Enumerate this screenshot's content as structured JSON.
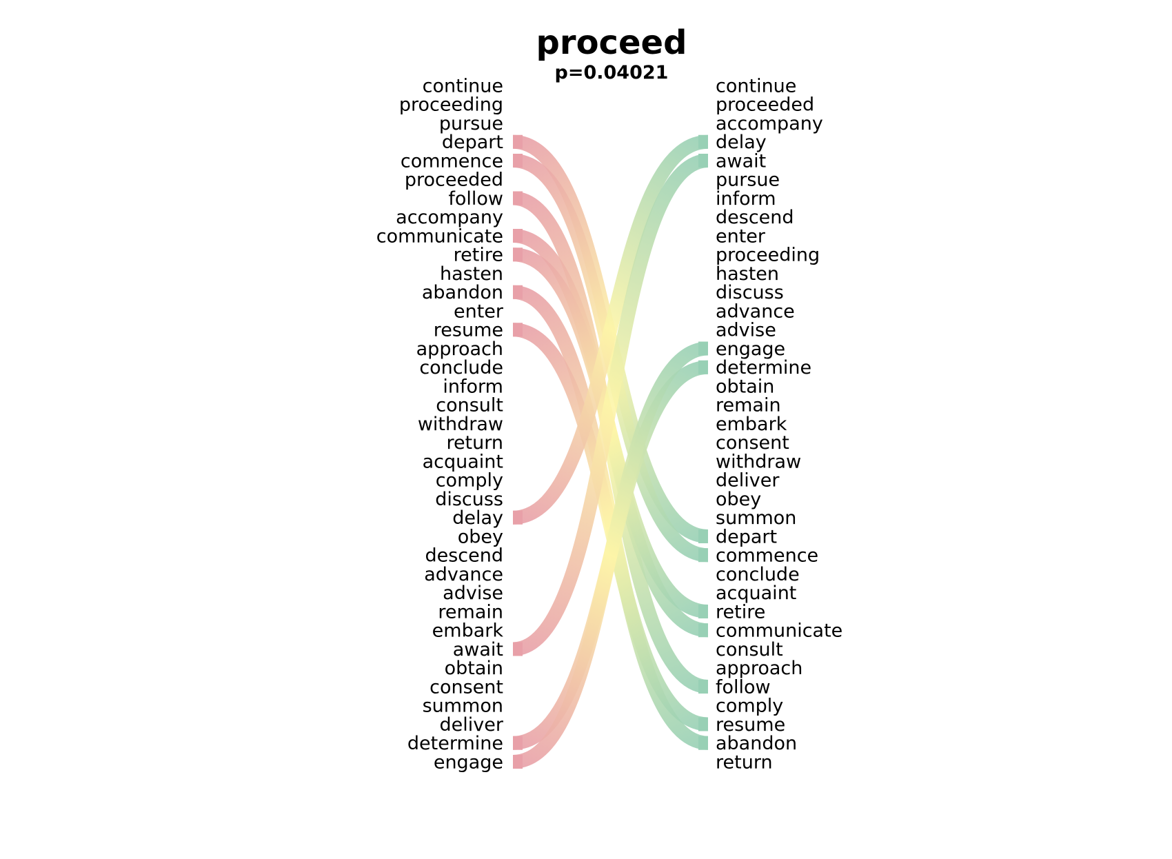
{
  "chart_data": {
    "type": "bump",
    "title": "proceed",
    "subtitle": "p=0.04021",
    "left_ranking": [
      "continue",
      "proceeding",
      "pursue",
      "depart",
      "commence",
      "proceeded",
      "follow",
      "accompany",
      "communicate",
      "retire",
      "hasten",
      "abandon",
      "enter",
      "resume",
      "approach",
      "conclude",
      "inform",
      "consult",
      "withdraw",
      "return",
      "acquaint",
      "comply",
      "discuss",
      "delay",
      "obey",
      "descend",
      "advance",
      "advise",
      "remain",
      "embark",
      "await",
      "obtain",
      "consent",
      "summon",
      "deliver",
      "determine",
      "engage"
    ],
    "right_ranking": [
      "continue",
      "proceeded",
      "accompany",
      "delay",
      "await",
      "pursue",
      "inform",
      "descend",
      "enter",
      "proceeding",
      "hasten",
      "discuss",
      "advance",
      "advise",
      "engage",
      "determine",
      "obtain",
      "remain",
      "embark",
      "consent",
      "withdraw",
      "deliver",
      "obey",
      "summon",
      "depart",
      "commence",
      "conclude",
      "acquaint",
      "retire",
      "communicate",
      "consult",
      "approach",
      "follow",
      "comply",
      "resume",
      "abandon",
      "return"
    ],
    "highlighted_flows": [
      "depart",
      "commence",
      "follow",
      "communicate",
      "retire",
      "abandon",
      "resume",
      "delay",
      "await",
      "determine",
      "engage"
    ],
    "colors": {
      "drop": "#e8a0a8",
      "mid": "#fdf5a8",
      "rise": "#98d0b5"
    }
  }
}
